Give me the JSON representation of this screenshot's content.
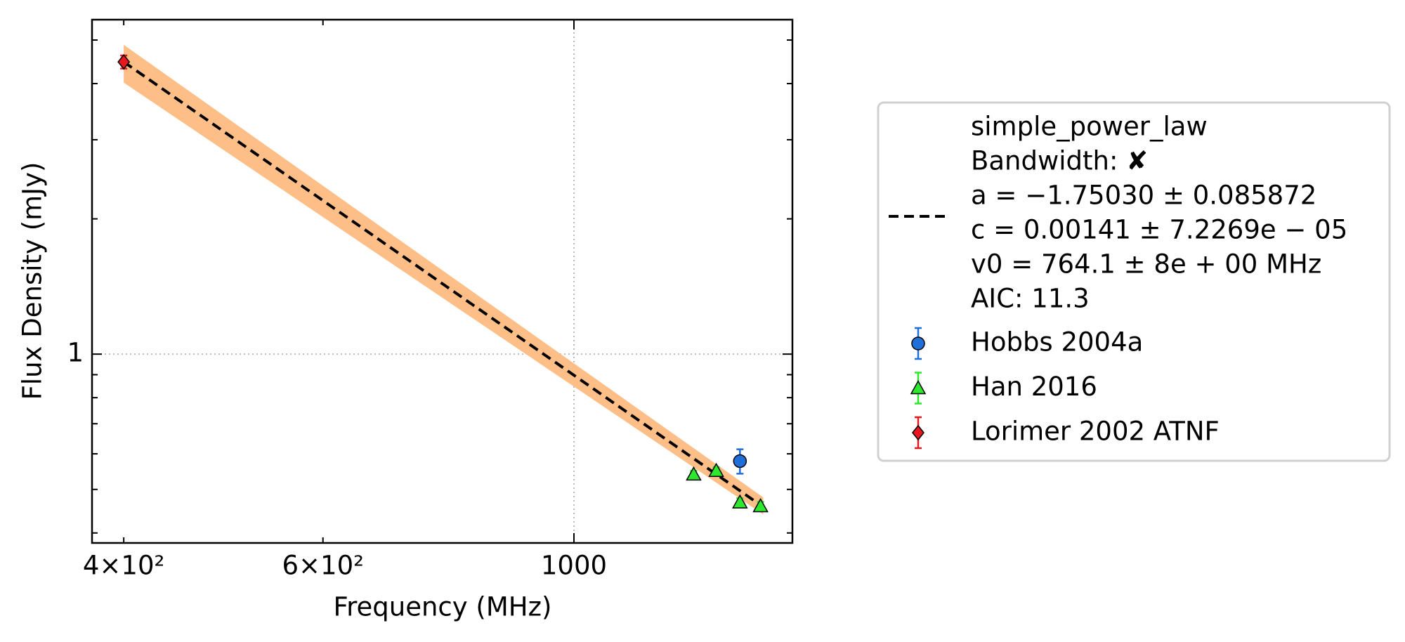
{
  "chart_data": {
    "type": "scatter",
    "xlabel": "Frequency (MHz)",
    "ylabel": "Flux Density (mJy)",
    "xscale": "log",
    "yscale": "log",
    "xlim": [
      375,
      1560
    ],
    "ylim": [
      0.38,
      5.55
    ],
    "xticks": [
      {
        "value": 400,
        "label": "4×10²"
      },
      {
        "value": 600,
        "label": "6×10²"
      },
      1000
    ],
    "xgridticks": [
      1000
    ],
    "yticks": [
      1
    ],
    "yminorticks": [
      0.4,
      0.5,
      0.6,
      0.7,
      0.8,
      0.9,
      2,
      3,
      4,
      5
    ],
    "grid": true,
    "fit": {
      "label_lines": [
        "simple_power_law",
        "Bandwidth: ✘",
        "a = −1.75030 ± 0.085872",
        "c = 0.00141 ± 7.2269e − 05",
        "v0 = 764.1 ± 8e + 00 MHz",
        "AIC: 11.3"
      ],
      "color": "#000000",
      "x": [
        400,
        1470
      ],
      "values": [
        4.47,
        0.457
      ]
    },
    "band": {
      "color": "#fdbf87",
      "x": [
        400,
        1470
      ],
      "upper": [
        4.88,
        0.48
      ],
      "lower": [
        4.02,
        0.44
      ]
    },
    "series": [
      {
        "name": "Hobbs 2004a",
        "color": "#1f6fd8",
        "marker": "circle",
        "x": [
          1402
        ],
        "values": [
          0.578
        ],
        "errors": [
          0.036
        ]
      },
      {
        "name": "Han 2016",
        "color": "#2de82d",
        "marker": "triangle",
        "x": [
          1276,
          1336,
          1402,
          1462
        ],
        "values": [
          0.54,
          0.55,
          0.468,
          0.459
        ],
        "errors": [
          0.01,
          0.01,
          0.01,
          0.01
        ]
      },
      {
        "name": "Lorimer 2002 ATNF",
        "color": "#e8171e",
        "marker": "diamond",
        "x": [
          400
        ],
        "values": [
          4.47
        ],
        "errors": [
          0.15
        ]
      }
    ]
  }
}
